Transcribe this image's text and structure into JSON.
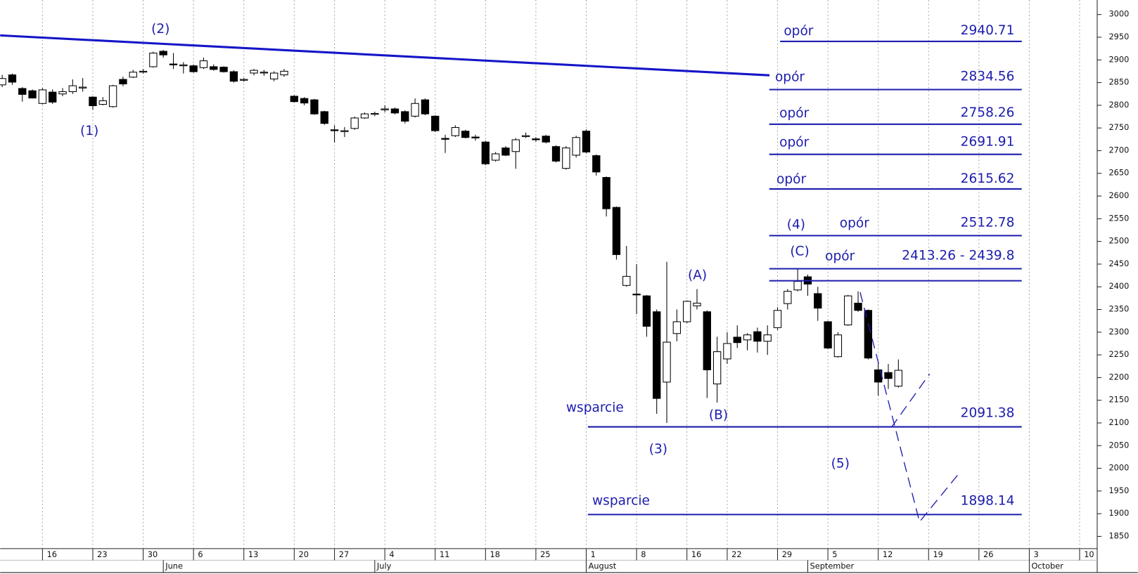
{
  "chart_data": {
    "type": "candlestick",
    "ylim": [
      1823,
      3032
    ],
    "yticks": [
      1850,
      1900,
      1950,
      2000,
      2050,
      2100,
      2150,
      2200,
      2250,
      2300,
      2350,
      2400,
      2450,
      2500,
      2550,
      2600,
      2650,
      2700,
      2750,
      2800,
      2850,
      2900,
      2950,
      3000
    ],
    "xlim": [
      -0.2,
      108.6
    ],
    "xticks": [
      {
        "value": 4,
        "label": "16"
      },
      {
        "value": 9,
        "label": "23"
      },
      {
        "value": 14,
        "label": "30"
      },
      {
        "value": 19,
        "label": "6"
      },
      {
        "value": 24,
        "label": "13"
      },
      {
        "value": 29,
        "label": "20"
      },
      {
        "value": 33,
        "label": "27"
      },
      {
        "value": 38,
        "label": "4"
      },
      {
        "value": 43,
        "label": "11"
      },
      {
        "value": 48,
        "label": "18"
      },
      {
        "value": 53,
        "label": "25"
      },
      {
        "value": 58,
        "label": "1"
      },
      {
        "value": 63,
        "label": "8"
      },
      {
        "value": 68,
        "label": "16"
      },
      {
        "value": 72,
        "label": "22"
      },
      {
        "value": 77,
        "label": "29"
      },
      {
        "value": 82,
        "label": "5"
      },
      {
        "value": 87,
        "label": "12"
      },
      {
        "value": 92,
        "label": "19"
      },
      {
        "value": 97,
        "label": "26"
      },
      {
        "value": 102,
        "label": "3"
      },
      {
        "value": 107,
        "label": "10"
      }
    ],
    "month_ticks": [
      {
        "value": 16,
        "label": "June"
      },
      {
        "value": 37,
        "label": "July"
      },
      {
        "value": 58,
        "label": "August"
      },
      {
        "value": 80,
        "label": "September"
      },
      {
        "value": 102,
        "label": "October"
      }
    ],
    "up_color": "#ffffff",
    "down_color": "#000000",
    "annotation_color": "#1c1cae",
    "trend_color": "#1515c8",
    "open": [
      2845,
      2867,
      2837,
      2832,
      2804,
      2829,
      2825,
      2830,
      2838,
      2818,
      2802,
      2797,
      2857,
      2862,
      2873,
      2885,
      2919,
      2891,
      2887,
      2887,
      2883,
      2885,
      2884,
      2874,
      2856,
      2871,
      2872,
      2858,
      2867,
      2820,
      2815,
      2812,
      2786,
      2746,
      2742,
      2749,
      2772,
      2780,
      2790,
      2792,
      2786,
      2776,
      2812,
      2776,
      2727,
      2733,
      2743,
      2730,
      2719,
      2679,
      2706,
      2698,
      2731,
      2726,
      2732,
      2709,
      2661,
      2690,
      2743,
      2689,
      2641,
      2575,
      2403,
      2384,
      2380,
      2345,
      2190,
      2297,
      2323,
      2358,
      2345,
      2186,
      2241,
      2289,
      2283,
      2301,
      2280,
      2310,
      2363,
      2393,
      2422,
      2385,
      2323,
      2246,
      2316,
      2364,
      2348,
      2217,
      2211,
      2181
    ],
    "high": [
      2867,
      2870,
      2840,
      2835,
      2838,
      2835,
      2838,
      2857,
      2860,
      2820,
      2818,
      2845,
      2863,
      2878,
      2880,
      2918,
      2922,
      2915,
      2895,
      2890,
      2905,
      2890,
      2886,
      2877,
      2860,
      2880,
      2878,
      2875,
      2880,
      2822,
      2818,
      2814,
      2788,
      2756,
      2752,
      2775,
      2784,
      2786,
      2800,
      2795,
      2789,
      2815,
      2815,
      2778,
      2735,
      2756,
      2746,
      2735,
      2722,
      2697,
      2710,
      2728,
      2740,
      2730,
      2735,
      2712,
      2710,
      2733,
      2747,
      2692,
      2643,
      2577,
      2490,
      2450,
      2382,
      2350,
      2455,
      2350,
      2370,
      2395,
      2348,
      2290,
      2300,
      2315,
      2298,
      2310,
      2315,
      2355,
      2395,
      2440,
      2427,
      2400,
      2325,
      2300,
      2382,
      2390,
      2350,
      2232,
      2230,
      2240
    ],
    "low": [
      2840,
      2845,
      2808,
      2815,
      2802,
      2803,
      2820,
      2825,
      2830,
      2790,
      2800,
      2795,
      2842,
      2860,
      2870,
      2883,
      2905,
      2880,
      2870,
      2872,
      2880,
      2876,
      2872,
      2850,
      2852,
      2866,
      2865,
      2853,
      2863,
      2806,
      2800,
      2779,
      2757,
      2718,
      2730,
      2746,
      2770,
      2776,
      2785,
      2780,
      2760,
      2773,
      2778,
      2741,
      2695,
      2730,
      2727,
      2722,
      2668,
      2676,
      2688,
      2660,
      2728,
      2720,
      2716,
      2674,
      2658,
      2685,
      2694,
      2645,
      2555,
      2460,
      2400,
      2340,
      2290,
      2120,
      2100,
      2280,
      2320,
      2350,
      2155,
      2145,
      2230,
      2265,
      2260,
      2255,
      2250,
      2305,
      2350,
      2390,
      2380,
      2325,
      2263,
      2244,
      2314,
      2345,
      2240,
      2160,
      2175,
      2178
    ],
    "close": [
      2859,
      2851,
      2824,
      2816,
      2834,
      2807,
      2830,
      2843,
      2840,
      2799,
      2810,
      2843,
      2847,
      2873,
      2875,
      2915,
      2911,
      2889,
      2889,
      2874,
      2898,
      2879,
      2874,
      2853,
      2857,
      2877,
      2873,
      2871,
      2875,
      2808,
      2805,
      2781,
      2760,
      2744,
      2744,
      2772,
      2781,
      2782,
      2792,
      2783,
      2765,
      2804,
      2781,
      2744,
      2725,
      2751,
      2729,
      2728,
      2671,
      2693,
      2690,
      2724,
      2733,
      2724,
      2719,
      2677,
      2706,
      2729,
      2697,
      2653,
      2572,
      2471,
      2423,
      2383,
      2313,
      2154,
      2278,
      2323,
      2368,
      2364,
      2217,
      2257,
      2275,
      2277,
      2294,
      2280,
      2294,
      2348,
      2390,
      2412,
      2406,
      2353,
      2265,
      2294,
      2380,
      2348,
      2243,
      2190,
      2198,
      2216
    ],
    "trendline": {
      "x": [
        -0.2,
        76.2
      ],
      "y": [
        2954,
        2866
      ]
    },
    "projections": [
      {
        "x": [
          85.2,
          91.1,
          95.1
        ],
        "y": [
          2388,
          1882,
          1991
        ]
      },
      {
        "x": [
          88.3,
          92.1
        ],
        "y": [
          2090,
          2208
        ]
      }
    ],
    "levels": [
      {
        "label": "opór",
        "value": 2940.71
      },
      {
        "label": "opór",
        "value": 2834.56
      },
      {
        "label": "opór",
        "value": 2758.26
      },
      {
        "label": "opór",
        "value": 2691.91
      },
      {
        "label": "opór",
        "value": 2615.62
      },
      {
        "label": "opór",
        "value": 2512.78
      },
      {
        "label": "opór",
        "values": [
          2439.8,
          2413.26
        ],
        "value_label": "2413.26 - 2439.8"
      },
      {
        "label": "wsparcie",
        "value": 2091.38
      },
      {
        "label": "wsparcie",
        "value": 1898.14
      }
    ],
    "wave_labels": [
      "(1)",
      "(2)",
      "(3)",
      "(4)",
      "(5)",
      "(A)",
      "(B)",
      "(C)"
    ]
  }
}
